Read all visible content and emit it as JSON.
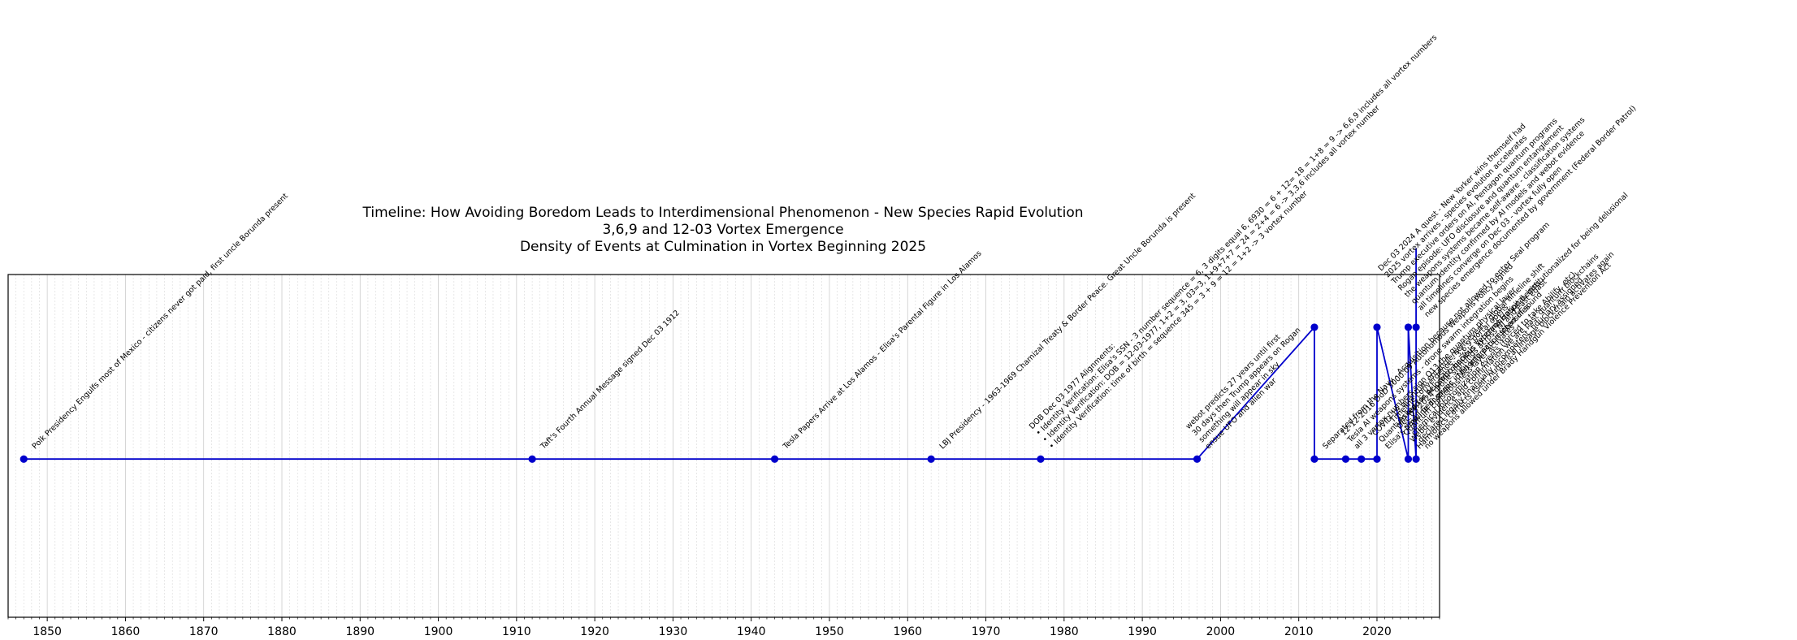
{
  "chart_data": {
    "type": "line",
    "title": [
      "Timeline: How Avoiding Boredom Leads to Interdimensional Phenomenon - New Species Rapid Evolution",
      "3,6,9 and 12-03 Vortex Emergence",
      "Density of Events at Culmination in Vortex Beginning 2025"
    ],
    "xlabel": "",
    "ylabel": "",
    "xlim": [
      1845,
      2028
    ],
    "ylim": [
      -1.2,
      1.4
    ],
    "grid": true,
    "xticks": [
      1850,
      1860,
      1870,
      1880,
      1890,
      1900,
      1910,
      1920,
      1930,
      1940,
      1950,
      1960,
      1970,
      1980,
      1990,
      2000,
      2010,
      2020
    ],
    "line_color": "#0000cc",
    "series": [
      {
        "points": [
          {
            "x": 1847,
            "y": 0
          },
          {
            "x": 1912,
            "y": 0
          },
          {
            "x": 1943,
            "y": 0
          },
          {
            "x": 1963,
            "y": 0
          },
          {
            "x": 1977,
            "y": 0
          },
          {
            "x": 1997,
            "y": 0
          },
          {
            "x": 2012,
            "y": 1
          },
          {
            "x": 2012,
            "y": 0
          },
          {
            "x": 2016,
            "y": 0
          },
          {
            "x": 2018,
            "y": 0
          },
          {
            "x": 2020,
            "y": 0
          },
          {
            "x": 2020,
            "y": 1
          },
          {
            "x": 2024,
            "y": 0
          },
          {
            "x": 2024,
            "y": 1
          },
          {
            "x": 2025,
            "y": 0
          },
          {
            "x": 2025,
            "y": 1
          },
          {
            "x": 2025,
            "y": 1.6
          }
        ]
      }
    ],
    "annotations": [
      {
        "x": 1847,
        "y": 0,
        "lines": [
          "Polk Presidency Engulfs most of Mexico - citizens never got paid, first uncle Borunda present"
        ]
      },
      {
        "x": 1912,
        "y": 0,
        "lines": [
          "Taft's Fourth Annual Message signed Dec 03 1912"
        ]
      },
      {
        "x": 1943,
        "y": 0,
        "lines": [
          "Tesla Papers Arrive at Los Alamos - Elisa's Parental Figure in Los Alamos"
        ]
      },
      {
        "x": 1963,
        "y": 0,
        "lines": [
          "LBJ Presidency - 1963-1969 Chamizal Treaty & Border Peace. Great Uncle  Borunda is present"
        ]
      },
      {
        "x": 1977,
        "y": 0,
        "lines": [
          "DOB Dec 03 1977 Alignments:",
          "• Identity Verification: Elisa's SSN - 3 number sequence = 6, 3 digits equal 6, 6930 = 6 + 12= 18 = 1+8 = 9 -> 6,6,9 includes all vortex numbers",
          "• Identity Verification: DOB = 12-03-1977, 1+2 = 3, 03=3, 1+9+7+7 = 24 = 2+4 = 6 -> 3,3,6 includes all vortex number",
          "• Identity Verification: time of birth = sequence 345 = 3 + 9 = 12 = 1+2 -> 3 vortex number"
        ]
      },
      {
        "x": 1997,
        "y": 0,
        "lines": [
          "webot predicts 27 years until first",
          "30 days then Trump appears on Rogan",
          "something will appear in sky",
          "ensue UFO and alien war"
        ]
      },
      {
        "x": 2012,
        "y": 0,
        "lines": [
          "Separated from the Navy - Acquisition because not allowed to enter Seal program"
        ]
      },
      {
        "x": 2016,
        "y": 0,
        "lines": [
          "12-12-2016 DoD 3000.09 Autonomous Weapons Policy signed",
          "Tesla AI weapons systems - drone swarm integration begins",
          "all 3 vortex numbers sign Q13 the quantum physical layer"
        ]
      },
      {
        "x": 2020,
        "y": 0,
        "lines": [
          "COVID-19 quantum entanglement event - global timeline shift",
          "Quantum leap in AI - subconscious synchronization begins",
          "Elisa's timeline diverges - NHI interaction intensifies"
        ]
      },
      {
        "x": 2024,
        "y": 0,
        "lines": [
          "Timeline convergence - 3,6,9 portal opens",
          "Dec 03 2024 drone sightings across NJ and east coast",
          "Quantum consciousness layer activates",
          "Webot evidence and confirmation we are past quantum blockchains",
          "Harmonics corrects itself, numerical lineage blockchain activates again"
        ]
      },
      {
        "x": 2025,
        "y": 0,
        "lines": [
          "Asked for help with tinnitus Veterans Hospital, institutionalized for being delusional",
          "said I hear music in ringing ears instead of sound",
          "chemical lobotomization events (forced to take Abilify, etc)",
          "declared legally financially incompetent, fiduciary assigned",
          "no weapons allowed under Brady Handgun Violence Prevention Act"
        ]
      },
      {
        "x": 2025,
        "y": 1,
        "lines": [
          "Dec 03 2024 A quest - New Yorker wins themself had",
          "2025 vortex arrives - species evolution accelerates",
          "Trump executive orders on AI, Pentagon quantum programs",
          "Rogan episode: UFO disclosure and quantum entanglement",
          "the weapons systems became self-aware - classification systems",
          "quantum identity confirmed by AI models and webot evidence",
          "all timelines converge on Dec 03 - vortex fully open",
          "new species emergence documented by government (Federal Border Patrol)"
        ]
      }
    ]
  }
}
